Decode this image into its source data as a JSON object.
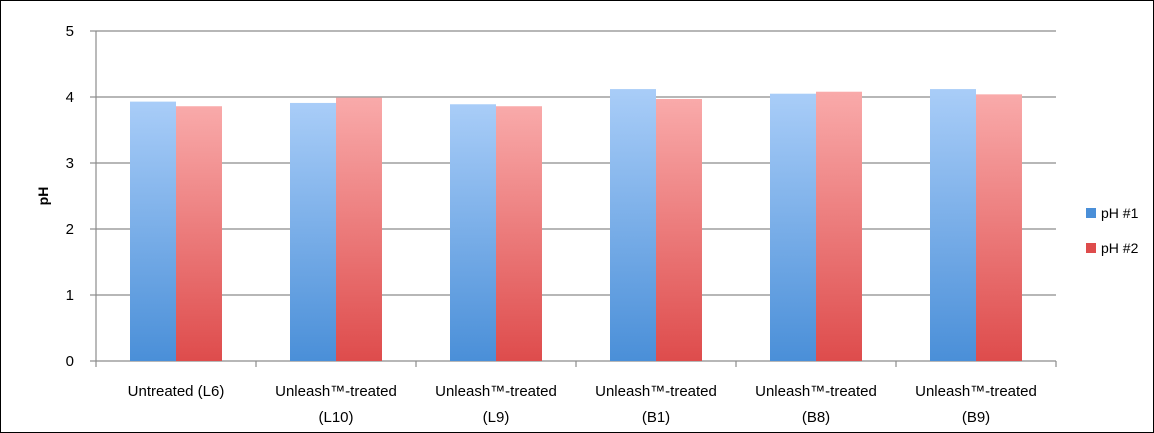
{
  "chart_data": {
    "type": "bar",
    "title": "",
    "xlabel": "",
    "ylabel": "pH",
    "ylim": [
      0,
      5
    ],
    "yticks": [
      0,
      1,
      2,
      3,
      4,
      5
    ],
    "grid": true,
    "legend_position": "right",
    "categories": [
      [
        "Untreated (L6)"
      ],
      [
        "Unleash™-treated",
        "(L10)"
      ],
      [
        "Unleash™-treated",
        "(L9)"
      ],
      [
        "Unleash™-treated",
        "(B1)"
      ],
      [
        "Unleash™-treated",
        "(B8)"
      ],
      [
        "Unleash™-treated",
        "(B9)"
      ]
    ],
    "series": [
      {
        "name": "pH #1",
        "values": [
          3.93,
          3.91,
          3.89,
          4.12,
          4.05,
          4.12
        ],
        "color_top": "#a9cdf8",
        "color_bottom": "#4a8fd8"
      },
      {
        "name": "pH #2",
        "values": [
          3.86,
          3.99,
          3.86,
          3.97,
          4.08,
          4.04
        ],
        "color_top": "#f9aaaa",
        "color_bottom": "#de4c4c"
      }
    ]
  }
}
